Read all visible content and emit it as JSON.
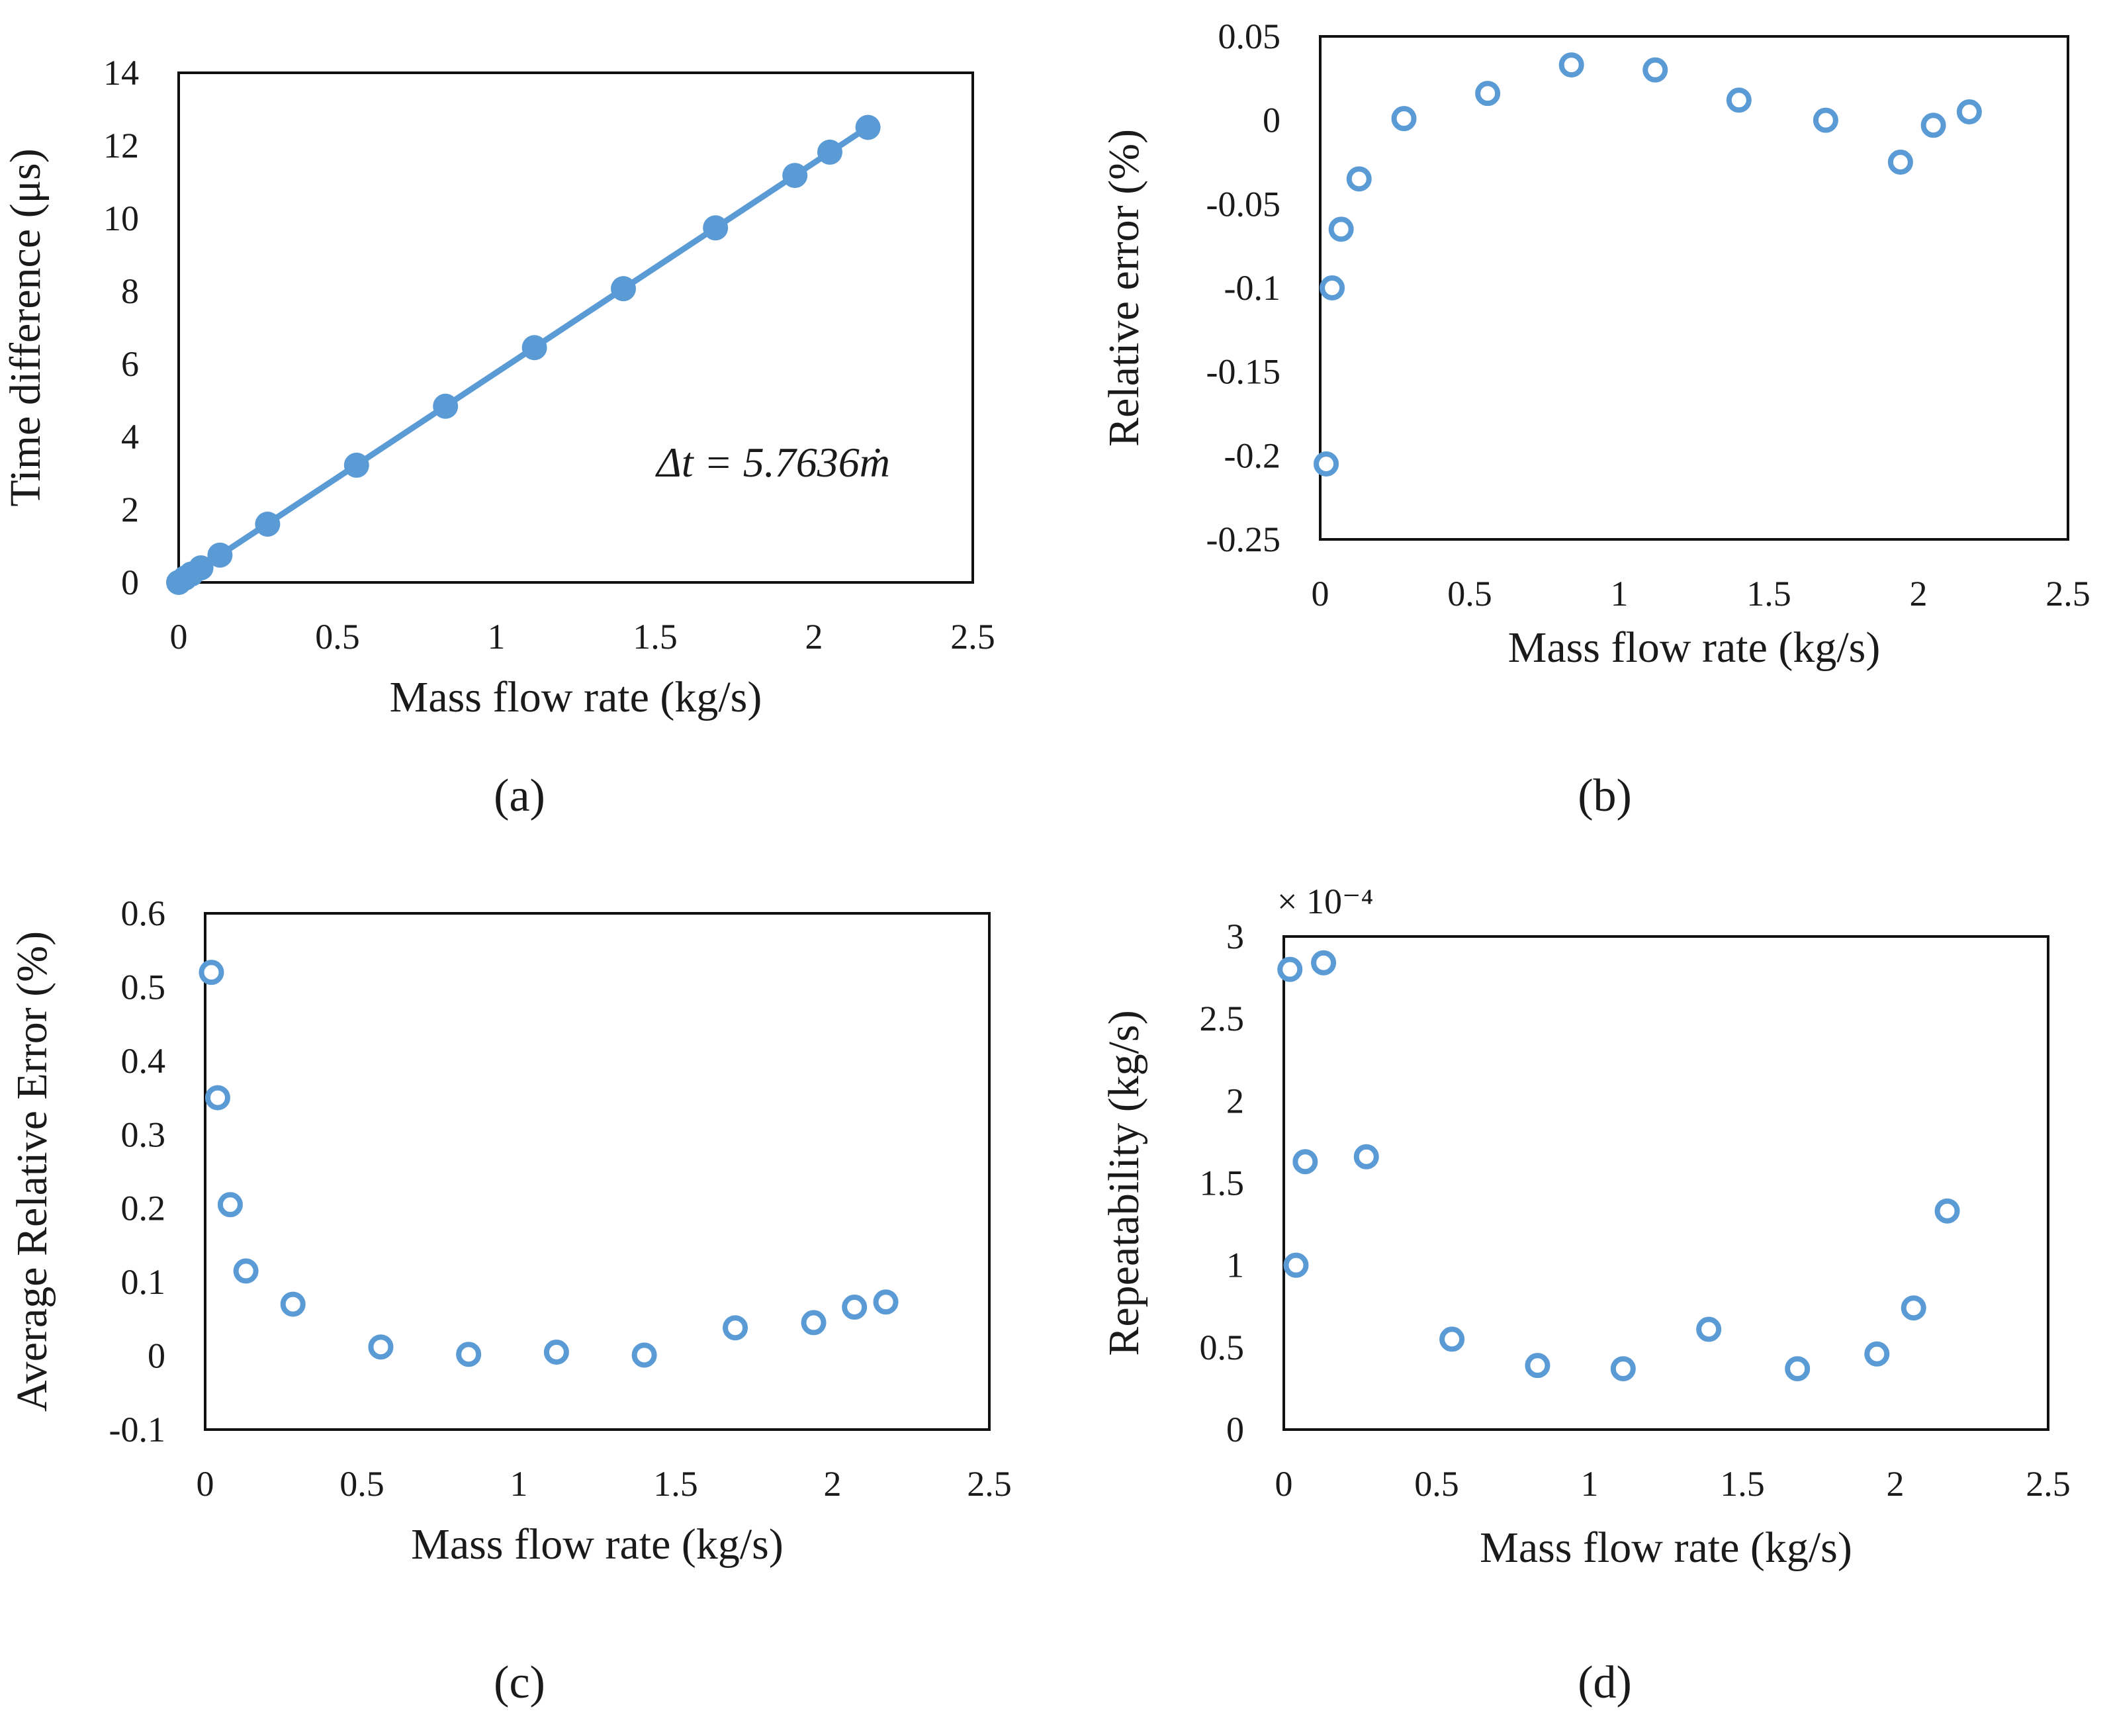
{
  "chart_data": [
    {
      "id": "a",
      "type": "scatter",
      "panel_label": "(a)",
      "title": "",
      "xlabel": "Mass flow rate (kg/s)",
      "ylabel": "Time difference (μs)",
      "xlim": [
        0,
        2.5
      ],
      "ylim": [
        0,
        14
      ],
      "x_ticks": [
        "0",
        "0.5",
        "1",
        "1.5",
        "2",
        "2.5"
      ],
      "y_ticks": [
        "0",
        "2",
        "4",
        "6",
        "8",
        "10",
        "12",
        "14"
      ],
      "annotation": "Δt = 5.7636ṁ",
      "fit_line": {
        "slope": 5.7636,
        "intercept": 0,
        "x_range": [
          0,
          2.17
        ]
      },
      "marker": "filled",
      "color": "#5b9bd5",
      "series": [
        {
          "name": "Time difference",
          "x": [
            0.0,
            0.02,
            0.04,
            0.07,
            0.13,
            0.28,
            0.56,
            0.84,
            1.12,
            1.4,
            1.69,
            1.94,
            2.05,
            2.17
          ],
          "y": [
            0.0,
            0.12,
            0.23,
            0.4,
            0.75,
            1.6,
            3.22,
            4.84,
            6.45,
            8.07,
            9.74,
            11.18,
            11.82,
            12.5
          ]
        }
      ]
    },
    {
      "id": "b",
      "type": "scatter",
      "panel_label": "(b)",
      "title": "",
      "xlabel": "Mass flow rate (kg/s)",
      "ylabel": "Relative error (%)",
      "xlim": [
        0,
        2.5
      ],
      "ylim": [
        -0.25,
        0.05
      ],
      "x_ticks": [
        "0",
        "0.5",
        "1",
        "1.5",
        "2",
        "2.5"
      ],
      "y_ticks": [
        "0.05",
        "0",
        "-0.05",
        "-0.1",
        "-0.15",
        "-0.2",
        "-0.25"
      ],
      "marker": "hollow",
      "color": "#5b9bd5",
      "series": [
        {
          "name": "Relative error",
          "x": [
            0.02,
            0.04,
            0.07,
            0.13,
            0.28,
            0.56,
            0.84,
            1.12,
            1.4,
            1.69,
            1.94,
            2.05,
            2.17
          ],
          "y": [
            -0.205,
            -0.1,
            -0.065,
            -0.035,
            0.001,
            0.016,
            0.033,
            0.03,
            0.012,
            0.0,
            -0.025,
            -0.003,
            0.005
          ]
        }
      ]
    },
    {
      "id": "c",
      "type": "scatter",
      "panel_label": "(c)",
      "title": "",
      "xlabel": "Mass flow rate (kg/s)",
      "ylabel": "Average Relative Error  (%)",
      "xlim": [
        0,
        2.5
      ],
      "ylim": [
        -0.1,
        0.6
      ],
      "x_ticks": [
        "0",
        "0.5",
        "1",
        "1.5",
        "2",
        "2.5"
      ],
      "y_ticks": [
        "0.6",
        "0.5",
        "0.4",
        "0.3",
        "0.2",
        "0.1",
        "0",
        "-0.1"
      ],
      "marker": "hollow",
      "color": "#5b9bd5",
      "series": [
        {
          "name": "Average relative error",
          "x": [
            0.02,
            0.04,
            0.08,
            0.13,
            0.28,
            0.56,
            0.84,
            1.12,
            1.4,
            1.69,
            1.94,
            2.07,
            2.17
          ],
          "y": [
            0.52,
            0.35,
            0.205,
            0.115,
            0.07,
            0.012,
            0.002,
            0.005,
            0.001,
            0.038,
            0.045,
            0.066,
            0.073
          ]
        }
      ]
    },
    {
      "id": "d",
      "type": "scatter",
      "panel_label": "(d)",
      "title": "",
      "xlabel": "Mass flow rate (kg/s)",
      "ylabel": "Repeatability  (kg/s)",
      "xlim": [
        0,
        2.5
      ],
      "ylim": [
        0,
        3
      ],
      "axis_multiplier": "× 10⁻⁴",
      "x_ticks": [
        "0",
        "0.5",
        "1",
        "1.5",
        "2",
        "2.5"
      ],
      "y_ticks": [
        "3",
        "2.5",
        "2",
        "1.5",
        "1",
        "0.5",
        "0"
      ],
      "marker": "hollow",
      "color": "#5b9bd5",
      "series": [
        {
          "name": "Repeatability (×10⁻⁴)",
          "x": [
            0.02,
            0.04,
            0.07,
            0.13,
            0.27,
            0.55,
            0.83,
            1.11,
            1.39,
            1.68,
            1.94,
            2.06,
            2.17
          ],
          "y": [
            2.8,
            1.0,
            1.63,
            2.84,
            1.66,
            0.55,
            0.39,
            0.37,
            0.61,
            0.37,
            0.46,
            0.74,
            1.33
          ]
        }
      ]
    }
  ]
}
